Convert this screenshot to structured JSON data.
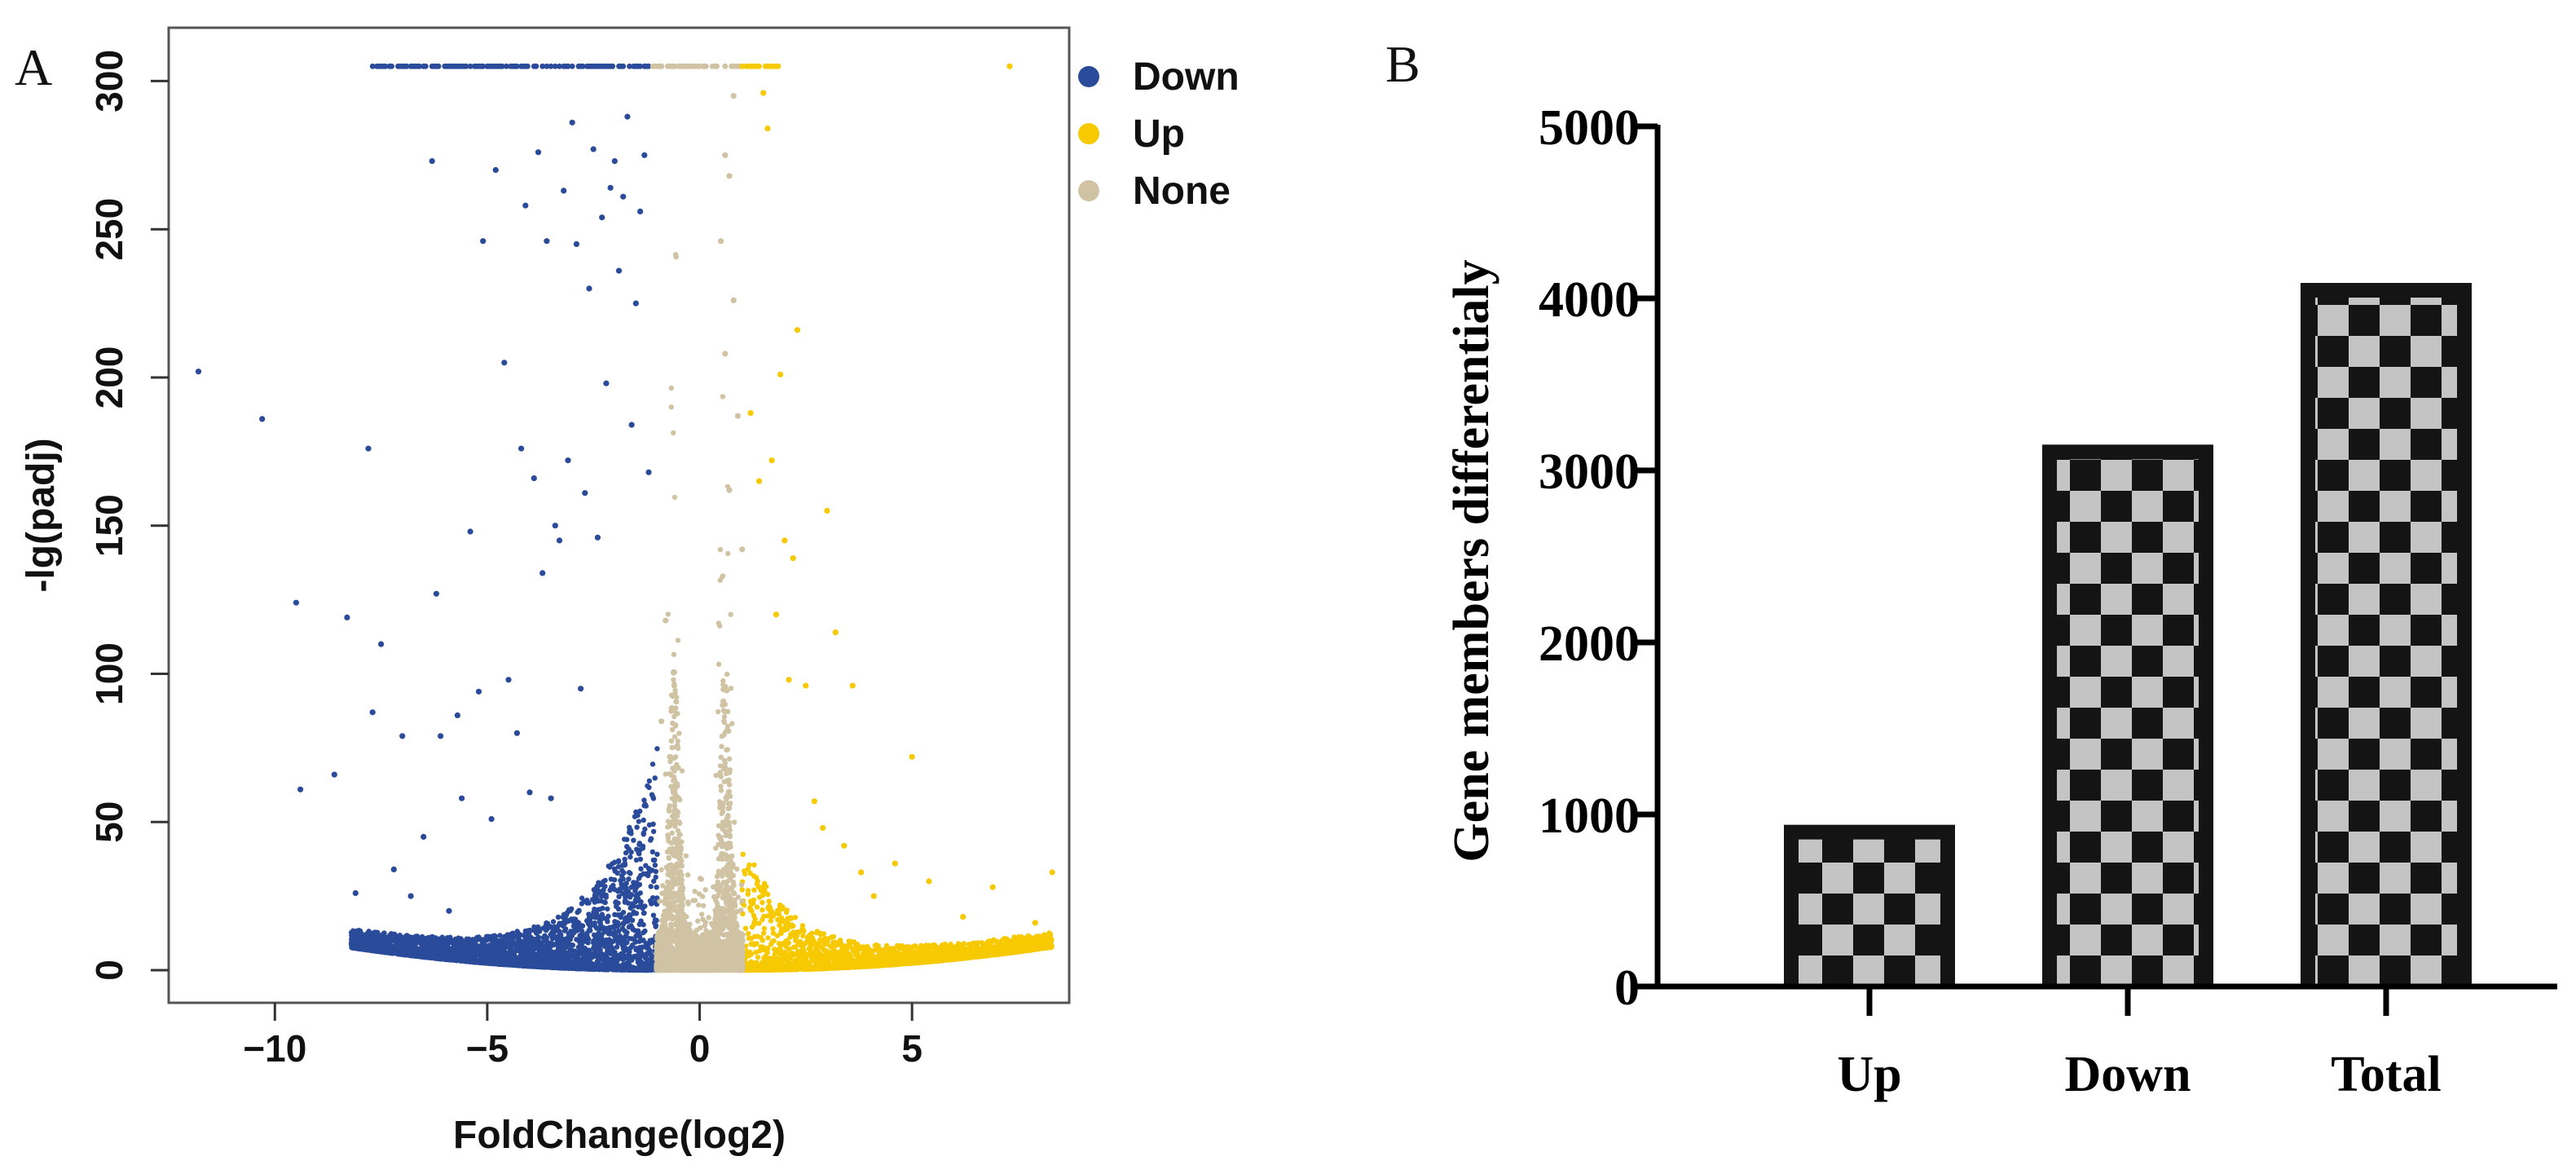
{
  "panels": {
    "a_label": "A",
    "b_label": "B"
  },
  "chart_data": [
    {
      "type": "scatter",
      "title": "",
      "xlabel": "FoldChange(log2)",
      "ylabel": "-lg(padj)",
      "xlim": [
        -12.5,
        8.7
      ],
      "ylim": [
        -11,
        318
      ],
      "x_ticks": [
        -10,
        -5,
        0,
        5
      ],
      "x_tick_labels": [
        "−10",
        "−5",
        "0",
        "5"
      ],
      "y_ticks": [
        0,
        50,
        100,
        150,
        200,
        250,
        300
      ],
      "y_tick_labels": [
        "0",
        "50",
        "100",
        "150",
        "200",
        "250",
        "300"
      ],
      "legend": {
        "position": "right-top",
        "entries": [
          {
            "name": "Down",
            "color": "#2a4a9a"
          },
          {
            "name": "Up",
            "color": "#f7c900"
          },
          {
            "name": "None",
            "color": "#cfc3a4"
          }
        ]
      },
      "series": [
        {
          "name": "Down",
          "color": "#2a4a9a",
          "points": [
            [
              -11.8,
              202
            ],
            [
              -10.3,
              186
            ],
            [
              -9.5,
              124
            ],
            [
              -9.4,
              61
            ],
            [
              -8.6,
              66
            ],
            [
              -8.3,
              119
            ],
            [
              -8.1,
              26
            ],
            [
              -7.8,
              176
            ],
            [
              -7.7,
              87
            ],
            [
              -7.5,
              110
            ],
            [
              -7.2,
              34
            ],
            [
              -7.0,
              79
            ],
            [
              -6.8,
              25
            ],
            [
              -6.5,
              45
            ],
            [
              -6.3,
              273
            ],
            [
              -6.2,
              127
            ],
            [
              -6.1,
              79
            ],
            [
              -5.9,
              20
            ],
            [
              -5.7,
              86
            ],
            [
              -5.6,
              58
            ],
            [
              -5.4,
              148
            ],
            [
              -5.2,
              94
            ],
            [
              -5.1,
              246
            ],
            [
              -4.9,
              51
            ],
            [
              -4.8,
              270
            ],
            [
              -4.6,
              205
            ],
            [
              -4.5,
              98
            ],
            [
              -4.3,
              80
            ],
            [
              -4.2,
              176
            ],
            [
              -4.1,
              258
            ],
            [
              -4.0,
              60
            ],
            [
              -3.9,
              166
            ],
            [
              -3.8,
              276
            ],
            [
              -3.7,
              134
            ],
            [
              -3.6,
              246
            ],
            [
              -3.5,
              58
            ],
            [
              -3.4,
              150
            ],
            [
              -3.3,
              145
            ],
            [
              -3.2,
              263
            ],
            [
              -3.1,
              172
            ],
            [
              -3.0,
              286
            ],
            [
              -2.9,
              245
            ],
            [
              -2.8,
              95
            ],
            [
              -2.7,
              161
            ],
            [
              -2.6,
              230
            ],
            [
              -2.5,
              277
            ],
            [
              -2.4,
              146
            ],
            [
              -2.3,
              254
            ],
            [
              -2.2,
              198
            ],
            [
              -2.1,
              264
            ],
            [
              -2.0,
              273
            ],
            [
              -1.9,
              236
            ],
            [
              -1.8,
              261
            ],
            [
              -1.7,
              288
            ],
            [
              -1.6,
              184
            ],
            [
              -1.5,
              225
            ],
            [
              -1.4,
              256
            ],
            [
              -1.3,
              275
            ],
            [
              -1.2,
              168
            ]
          ]
        },
        {
          "name": "Up",
          "color": "#f7c900",
          "points": [
            [
              1.2,
              188
            ],
            [
              1.4,
              165
            ],
            [
              1.5,
              296
            ],
            [
              1.6,
              284
            ],
            [
              1.7,
              172
            ],
            [
              1.8,
              120
            ],
            [
              1.9,
              201
            ],
            [
              2.0,
              145
            ],
            [
              2.1,
              98
            ],
            [
              2.2,
              139
            ],
            [
              2.3,
              216
            ],
            [
              2.5,
              96
            ],
            [
              2.7,
              57
            ],
            [
              2.9,
              48
            ],
            [
              3.0,
              155
            ],
            [
              3.2,
              114
            ],
            [
              3.4,
              42
            ],
            [
              3.6,
              96
            ],
            [
              3.8,
              33
            ],
            [
              4.1,
              25
            ],
            [
              4.6,
              36
            ],
            [
              5.0,
              72
            ],
            [
              5.4,
              30
            ],
            [
              6.2,
              18
            ],
            [
              6.9,
              28
            ],
            [
              7.3,
              305
            ],
            [
              7.9,
              16
            ],
            [
              8.3,
              33
            ]
          ]
        },
        {
          "name": "None",
          "color": "#cfc3a4",
          "points": [
            [
              -0.9,
              305
            ],
            [
              -0.6,
              305
            ],
            [
              -0.3,
              305
            ],
            [
              0.1,
              305
            ],
            [
              0.4,
              305
            ],
            [
              0.8,
              295
            ],
            [
              0.6,
              275
            ],
            [
              0.7,
              268
            ],
            [
              0.5,
              246
            ],
            [
              0.8,
              226
            ],
            [
              0.6,
              208
            ],
            [
              0.9,
              187
            ],
            [
              0.7,
              162
            ],
            [
              1.0,
              142
            ],
            [
              -0.8,
              118
            ],
            [
              -0.6,
              96
            ],
            [
              -0.9,
              84
            ],
            [
              -0.7,
              72
            ]
          ]
        }
      ],
      "capped_value": 305,
      "capped_bands": [
        {
          "series": "Down",
          "x_from": -7.8,
          "x_to": -1.2
        },
        {
          "series": "None",
          "x_from": -1.2,
          "x_to": 1.0
        },
        {
          "series": "Up",
          "x_from": 1.0,
          "x_to": 2.0
        }
      ]
    },
    {
      "type": "bar",
      "title": "",
      "xlabel": "",
      "ylabel": "Gene members differentialy",
      "categories": [
        "Up",
        "Down",
        "Total"
      ],
      "values": [
        940,
        3150,
        4090
      ],
      "ylim": [
        0,
        5000
      ],
      "y_ticks": [
        0,
        1000,
        2000,
        3000,
        4000,
        5000
      ],
      "y_tick_labels": [
        "0",
        "1000",
        "2000",
        "3000",
        "4000",
        "5000"
      ],
      "bar_fill": "checkerboard",
      "bar_colors": {
        "dark": "#141414",
        "light": "#c4c4c4"
      }
    }
  ]
}
